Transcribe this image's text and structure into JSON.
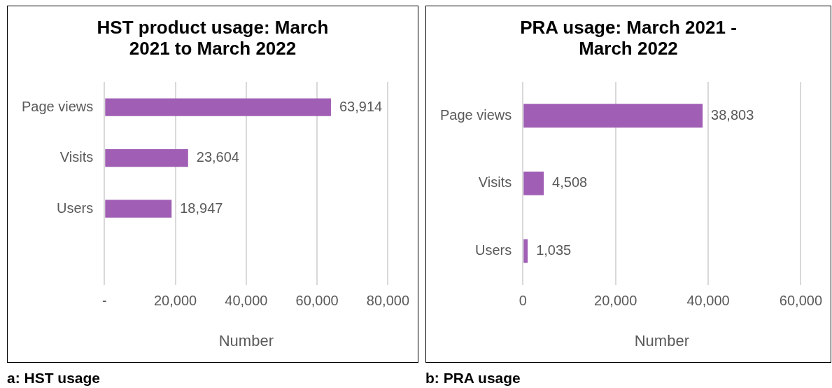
{
  "chart_data": [
    {
      "type": "bar",
      "orientation": "horizontal",
      "title": "HST product usage: March 2021 to March 2022",
      "xlabel": "Number",
      "categories": [
        "Page views",
        "Visits",
        "Users",
        null
      ],
      "values": [
        63914,
        23604,
        18947,
        null
      ],
      "value_labels": [
        "63,914",
        "23,604",
        "18,947",
        null
      ],
      "color": "#a05fb5",
      "xlim": [
        0,
        80000
      ],
      "xticks": [
        {
          "value": 0,
          "label": "-"
        },
        {
          "value": 20000,
          "label": "20,000"
        },
        {
          "value": 40000,
          "label": "40,000"
        },
        {
          "value": 60000,
          "label": "60,000"
        },
        {
          "value": 80000,
          "label": "80,000"
        }
      ],
      "grid": "x",
      "legend": false,
      "annotations": [
        "a: HST usage"
      ]
    },
    {
      "type": "bar",
      "orientation": "horizontal",
      "title": "PRA usage: March 2021 - March 2022",
      "xlabel": "Number",
      "categories": [
        "Page views",
        "Visits",
        "Users"
      ],
      "values": [
        38803,
        4508,
        1035
      ],
      "value_labels": [
        "38,803",
        "4,508",
        "1,035"
      ],
      "color": "#a05fb5",
      "xlim": [
        0,
        60000
      ],
      "xticks": [
        0,
        {
          "value": 20000,
          "label": "20,000"
        },
        {
          "value": 40000,
          "label": "40,000"
        },
        {
          "value": 60000,
          "label": "60,000"
        }
      ],
      "grid": "x",
      "legend": false,
      "annotations": [
        "b: PRA usage"
      ]
    }
  ]
}
